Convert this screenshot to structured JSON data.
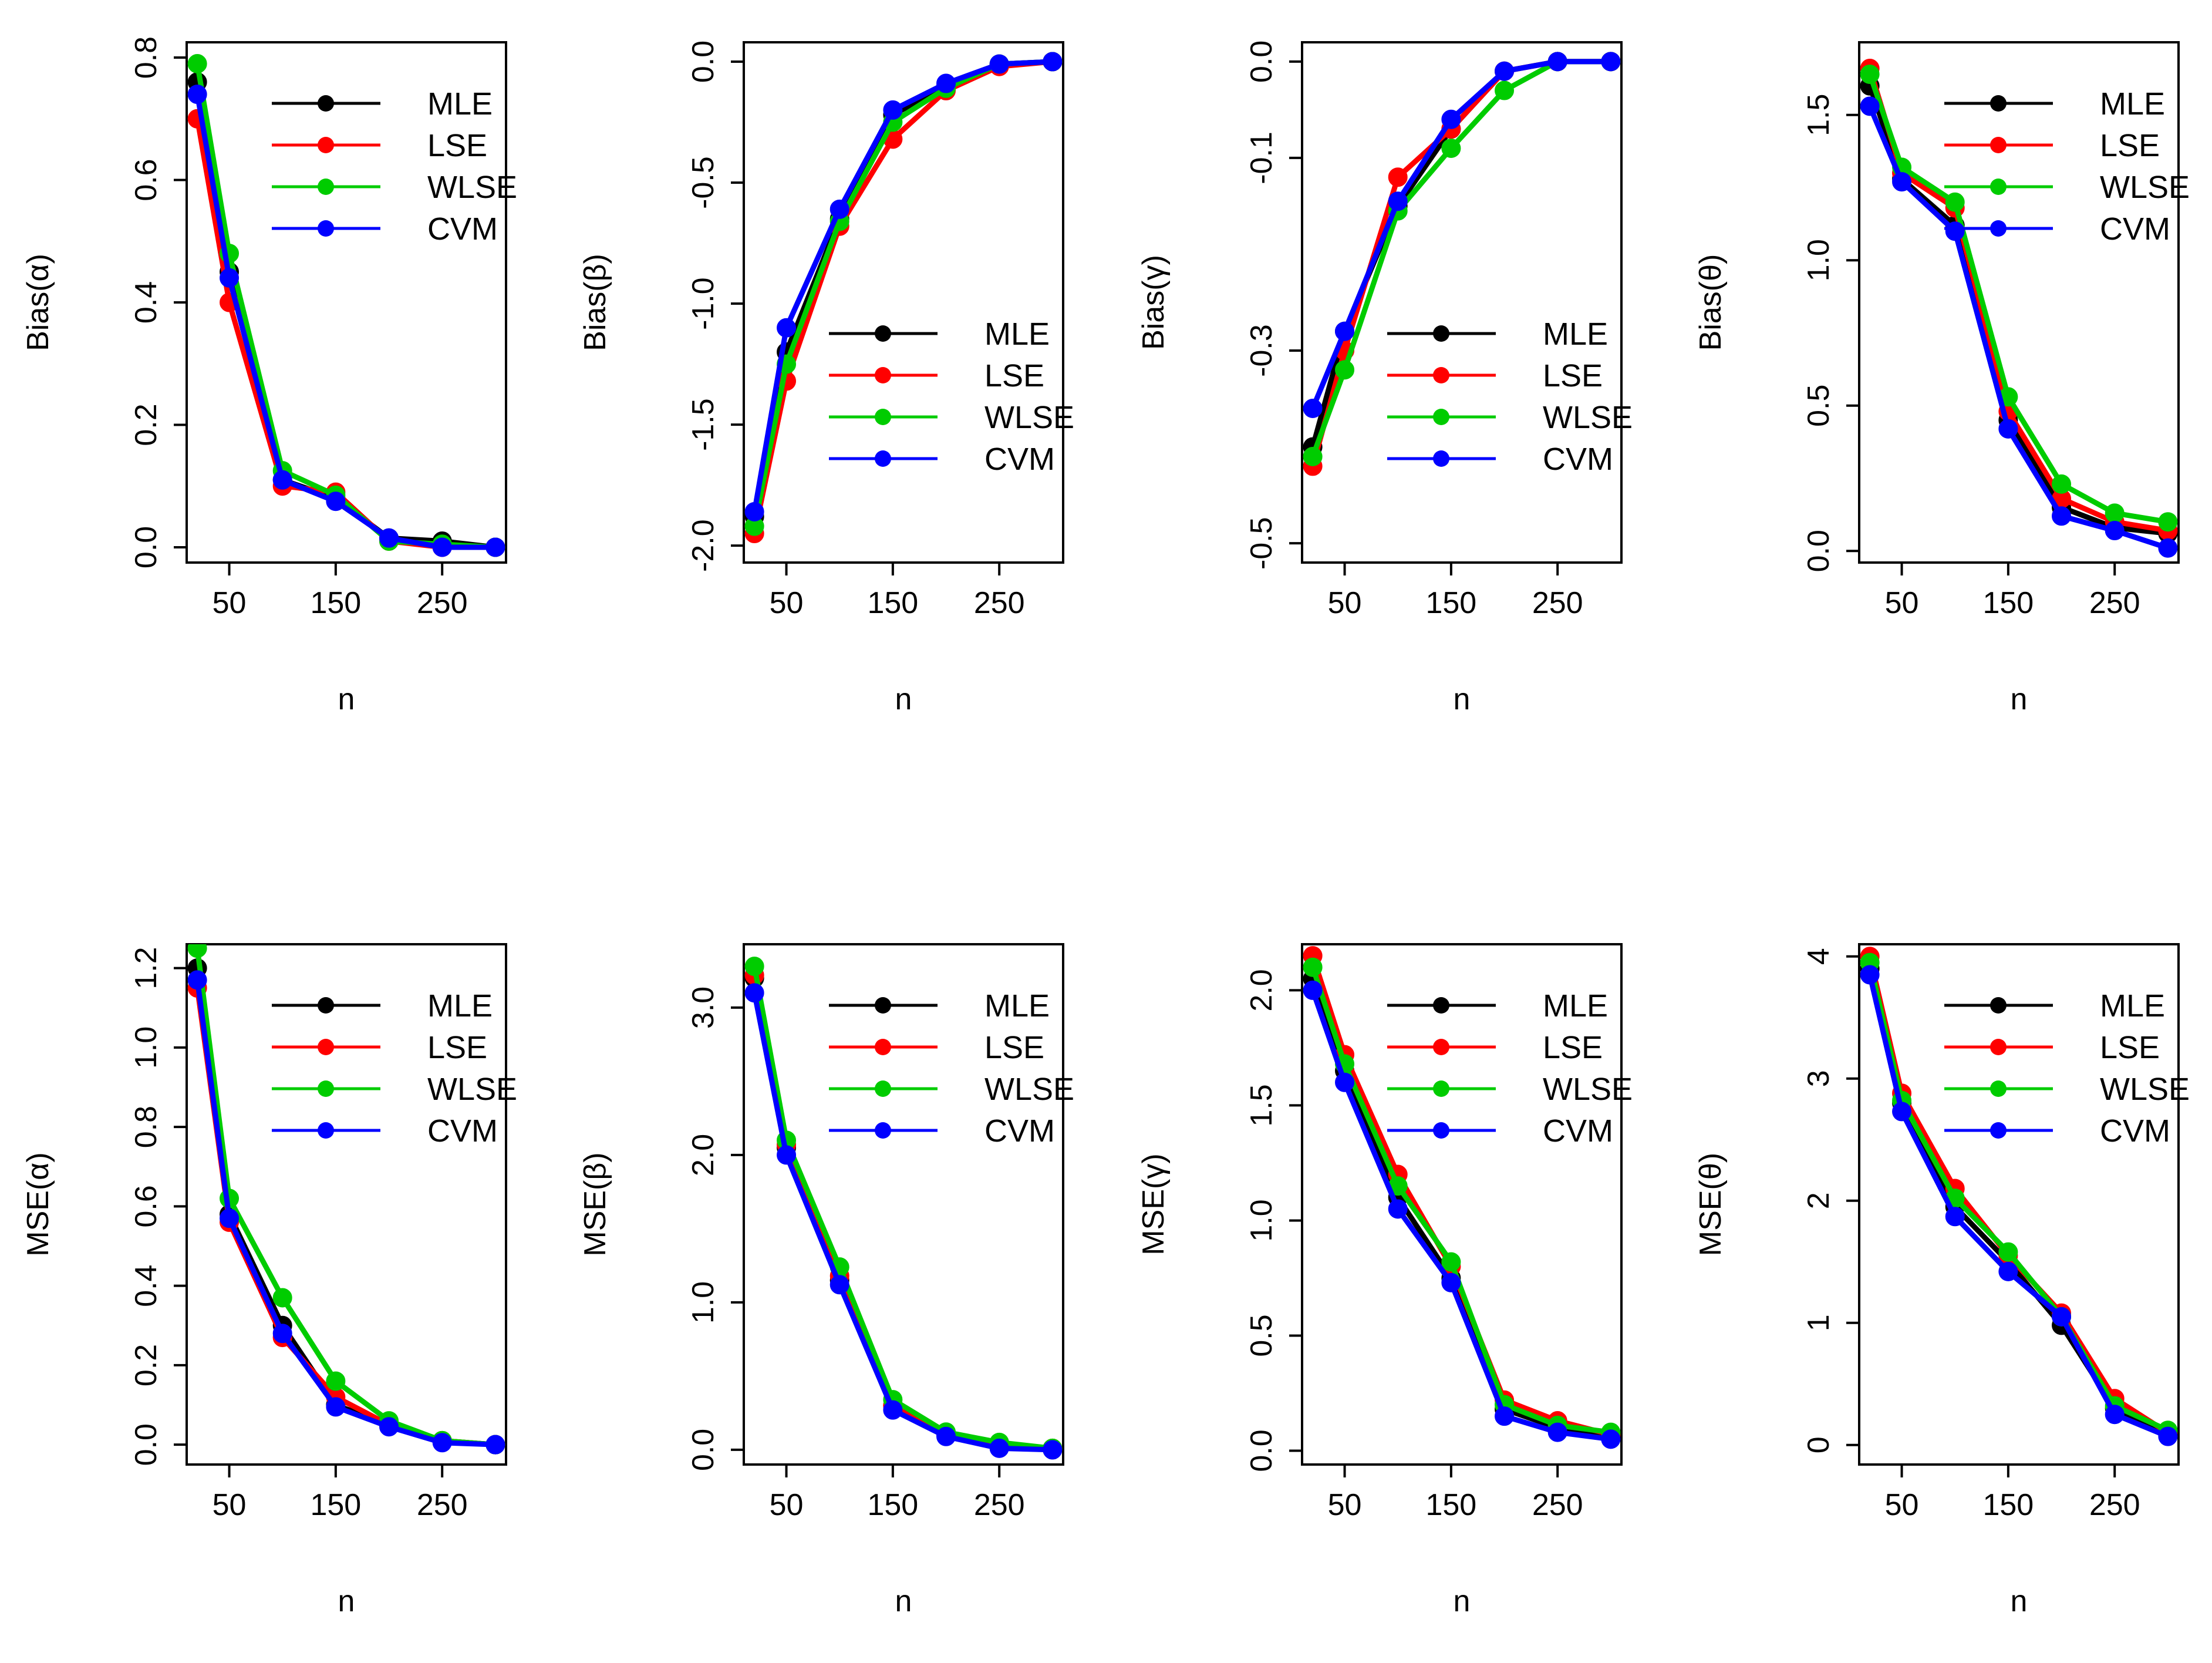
{
  "chart_data": [
    {
      "type": "line",
      "title": "",
      "xlabel": "n",
      "ylabel": "Bias(α)",
      "x": [
        20,
        50,
        100,
        150,
        200,
        250,
        300
      ],
      "xticks": [
        50,
        150,
        250
      ],
      "xlim": [
        10,
        310
      ],
      "ylim": [
        -0.025,
        0.825
      ],
      "yticks": [
        0.0,
        0.2,
        0.4,
        0.6,
        0.8
      ],
      "ytick_labels": [
        "0.0",
        "0.2",
        "0.4",
        "0.6",
        "0.8"
      ],
      "legend": {
        "position": "top-right"
      },
      "series": [
        {
          "name": "MLE",
          "color": "#000000",
          "values": [
            0.76,
            0.45,
            0.11,
            0.08,
            0.015,
            0.01,
            0.0
          ]
        },
        {
          "name": "LSE",
          "color": "#ff0000",
          "values": [
            0.7,
            0.4,
            0.1,
            0.09,
            0.01,
            0.0,
            0.0
          ]
        },
        {
          "name": "WLSE",
          "color": "#00cc00",
          "values": [
            0.79,
            0.48,
            0.125,
            0.085,
            0.01,
            0.005,
            0.0
          ]
        },
        {
          "name": "CVM",
          "color": "#0000ff",
          "values": [
            0.74,
            0.44,
            0.11,
            0.075,
            0.015,
            0.0,
            0.0
          ]
        }
      ]
    },
    {
      "type": "line",
      "title": "",
      "xlabel": "n",
      "ylabel": "Bias(β)",
      "x": [
        20,
        50,
        100,
        150,
        200,
        250,
        300
      ],
      "xticks": [
        50,
        150,
        250
      ],
      "xlim": [
        10,
        310
      ],
      "ylim": [
        -2.07,
        0.08
      ],
      "yticks": [
        -2.0,
        -1.5,
        -1.0,
        -0.5,
        0.0
      ],
      "ytick_labels": [
        "-2.0",
        "-1.5",
        "-1.0",
        "-0.5",
        "0.0"
      ],
      "legend": {
        "position": "center-right"
      },
      "series": [
        {
          "name": "MLE",
          "color": "#000000",
          "values": [
            -1.88,
            -1.2,
            -0.65,
            -0.22,
            -0.1,
            -0.01,
            0.0
          ]
        },
        {
          "name": "LSE",
          "color": "#ff0000",
          "values": [
            -1.95,
            -1.32,
            -0.68,
            -0.32,
            -0.12,
            -0.02,
            0.0
          ]
        },
        {
          "name": "WLSE",
          "color": "#00cc00",
          "values": [
            -1.92,
            -1.25,
            -0.66,
            -0.25,
            -0.11,
            -0.01,
            0.0
          ]
        },
        {
          "name": "CVM",
          "color": "#0000ff",
          "values": [
            -1.86,
            -1.1,
            -0.61,
            -0.2,
            -0.09,
            -0.01,
            0.0
          ]
        }
      ]
    },
    {
      "type": "line",
      "title": "",
      "xlabel": "n",
      "ylabel": "Bias(γ)",
      "x": [
        20,
        50,
        100,
        150,
        200,
        250,
        300
      ],
      "xticks": [
        50,
        150,
        250
      ],
      "xlim": [
        10,
        310
      ],
      "ylim": [
        -0.52,
        0.02
      ],
      "yticks": [
        -0.5,
        -0.3,
        -0.1,
        0.0
      ],
      "ytick_labels": [
        "-0.5",
        "-0.3",
        "-0.1",
        "0.0"
      ],
      "legend": {
        "position": "center-right"
      },
      "series": [
        {
          "name": "MLE",
          "color": "#000000",
          "values": [
            -0.4,
            -0.28,
            -0.15,
            -0.07,
            -0.01,
            0.0,
            0.0
          ]
        },
        {
          "name": "LSE",
          "color": "#ff0000",
          "values": [
            -0.42,
            -0.3,
            -0.12,
            -0.07,
            -0.01,
            0.0,
            0.0
          ]
        },
        {
          "name": "WLSE",
          "color": "#00cc00",
          "values": [
            -0.41,
            -0.32,
            -0.155,
            -0.09,
            -0.03,
            0.0,
            0.0
          ]
        },
        {
          "name": "CVM",
          "color": "#0000ff",
          "values": [
            -0.36,
            -0.28,
            -0.145,
            -0.06,
            -0.01,
            0.0,
            0.0
          ]
        }
      ]
    },
    {
      "type": "line",
      "title": "",
      "xlabel": "n",
      "ylabel": "Bias(θ)",
      "x": [
        20,
        50,
        100,
        150,
        200,
        250,
        300
      ],
      "xticks": [
        50,
        150,
        250
      ],
      "xlim": [
        10,
        310
      ],
      "ylim": [
        -0.04,
        1.75
      ],
      "yticks": [
        0.0,
        0.5,
        1.0,
        1.5
      ],
      "ytick_labels": [
        "0.0",
        "0.5",
        "1.0",
        "1.5"
      ],
      "legend": {
        "position": "top-right"
      },
      "series": [
        {
          "name": "MLE",
          "color": "#000000",
          "values": [
            1.6,
            1.28,
            1.12,
            0.45,
            0.15,
            0.08,
            0.06
          ]
        },
        {
          "name": "LSE",
          "color": "#ff0000",
          "values": [
            1.66,
            1.3,
            1.18,
            0.48,
            0.18,
            0.1,
            0.07
          ]
        },
        {
          "name": "WLSE",
          "color": "#00cc00",
          "values": [
            1.64,
            1.32,
            1.2,
            0.53,
            0.23,
            0.13,
            0.1
          ]
        },
        {
          "name": "CVM",
          "color": "#0000ff",
          "values": [
            1.53,
            1.27,
            1.1,
            0.42,
            0.12,
            0.07,
            0.01
          ]
        }
      ]
    },
    {
      "type": "line",
      "title": "",
      "xlabel": "n",
      "ylabel": "MSE(α)",
      "x": [
        20,
        50,
        100,
        150,
        200,
        250,
        300
      ],
      "xticks": [
        50,
        150,
        250
      ],
      "xlim": [
        10,
        310
      ],
      "ylim": [
        -0.05,
        1.26
      ],
      "yticks": [
        0.0,
        0.2,
        0.4,
        0.6,
        0.8,
        1.0,
        1.2
      ],
      "ytick_labels": [
        "0.0",
        "0.2",
        "0.4",
        "0.6",
        "0.8",
        "1.0",
        "1.2"
      ],
      "legend": {
        "position": "top-right"
      },
      "series": [
        {
          "name": "MLE",
          "color": "#000000",
          "values": [
            1.2,
            0.58,
            0.3,
            0.1,
            0.05,
            0.01,
            0.0
          ]
        },
        {
          "name": "LSE",
          "color": "#ff0000",
          "values": [
            1.15,
            0.56,
            0.27,
            0.12,
            0.05,
            0.01,
            0.0
          ]
        },
        {
          "name": "WLSE",
          "color": "#00cc00",
          "values": [
            1.25,
            0.62,
            0.37,
            0.16,
            0.06,
            0.01,
            0.0
          ]
        },
        {
          "name": "CVM",
          "color": "#0000ff",
          "values": [
            1.17,
            0.57,
            0.28,
            0.095,
            0.045,
            0.005,
            0.0
          ]
        }
      ]
    },
    {
      "type": "line",
      "title": "",
      "xlabel": "n",
      "ylabel": "MSE(β)",
      "x": [
        20,
        50,
        100,
        150,
        200,
        250,
        300
      ],
      "xticks": [
        50,
        150,
        250
      ],
      "xlim": [
        10,
        310
      ],
      "ylim": [
        -0.1,
        3.43
      ],
      "yticks": [
        0.0,
        1.0,
        2.0,
        3.0
      ],
      "ytick_labels": [
        "0.0",
        "1.0",
        "2.0",
        "3.0"
      ],
      "legend": {
        "position": "top-right"
      },
      "series": [
        {
          "name": "MLE",
          "color": "#000000",
          "values": [
            3.2,
            2.05,
            1.15,
            0.3,
            0.1,
            0.02,
            0.0
          ]
        },
        {
          "name": "LSE",
          "color": "#ff0000",
          "values": [
            3.22,
            2.07,
            1.18,
            0.3,
            0.11,
            0.03,
            0.01
          ]
        },
        {
          "name": "WLSE",
          "color": "#00cc00",
          "values": [
            3.28,
            2.1,
            1.24,
            0.34,
            0.12,
            0.05,
            0.01
          ]
        },
        {
          "name": "CVM",
          "color": "#0000ff",
          "values": [
            3.1,
            2.0,
            1.12,
            0.27,
            0.09,
            0.01,
            0.0
          ]
        }
      ]
    },
    {
      "type": "line",
      "title": "",
      "xlabel": "n",
      "ylabel": "MSE(γ)",
      "x": [
        20,
        50,
        100,
        150,
        200,
        250,
        300
      ],
      "xticks": [
        50,
        150,
        250
      ],
      "xlim": [
        10,
        310
      ],
      "ylim": [
        -0.06,
        2.2
      ],
      "yticks": [
        0.0,
        0.5,
        1.0,
        1.5,
        2.0
      ],
      "ytick_labels": [
        "0.0",
        "0.5",
        "1.0",
        "1.5",
        "2.0"
      ],
      "legend": {
        "position": "top-right"
      },
      "series": [
        {
          "name": "MLE",
          "color": "#000000",
          "values": [
            2.05,
            1.65,
            1.1,
            0.75,
            0.18,
            0.1,
            0.06
          ]
        },
        {
          "name": "LSE",
          "color": "#ff0000",
          "values": [
            2.15,
            1.72,
            1.2,
            0.8,
            0.22,
            0.13,
            0.07
          ]
        },
        {
          "name": "WLSE",
          "color": "#00cc00",
          "values": [
            2.1,
            1.68,
            1.15,
            0.82,
            0.2,
            0.11,
            0.08
          ]
        },
        {
          "name": "CVM",
          "color": "#0000ff",
          "values": [
            2.0,
            1.6,
            1.05,
            0.73,
            0.15,
            0.08,
            0.05
          ]
        }
      ]
    },
    {
      "type": "line",
      "title": "",
      "xlabel": "n",
      "ylabel": "MSE(θ)",
      "x": [
        20,
        50,
        100,
        150,
        200,
        250,
        300
      ],
      "xticks": [
        50,
        150,
        250
      ],
      "xlim": [
        10,
        310
      ],
      "ylim": [
        -0.16,
        4.1
      ],
      "yticks": [
        0,
        1,
        2,
        3,
        4
      ],
      "ytick_labels": [
        "0",
        "1",
        "2",
        "3",
        "4"
      ],
      "legend": {
        "position": "top-right"
      },
      "series": [
        {
          "name": "MLE",
          "color": "#000000",
          "values": [
            3.9,
            2.8,
            1.95,
            1.5,
            0.98,
            0.3,
            0.08
          ]
        },
        {
          "name": "LSE",
          "color": "#ff0000",
          "values": [
            4.0,
            2.88,
            2.1,
            1.55,
            1.08,
            0.38,
            0.1
          ]
        },
        {
          "name": "WLSE",
          "color": "#00cc00",
          "values": [
            3.95,
            2.82,
            2.02,
            1.58,
            1.05,
            0.32,
            0.12
          ]
        },
        {
          "name": "CVM",
          "color": "#0000ff",
          "values": [
            3.85,
            2.73,
            1.87,
            1.42,
            1.05,
            0.25,
            0.07
          ]
        }
      ]
    }
  ]
}
